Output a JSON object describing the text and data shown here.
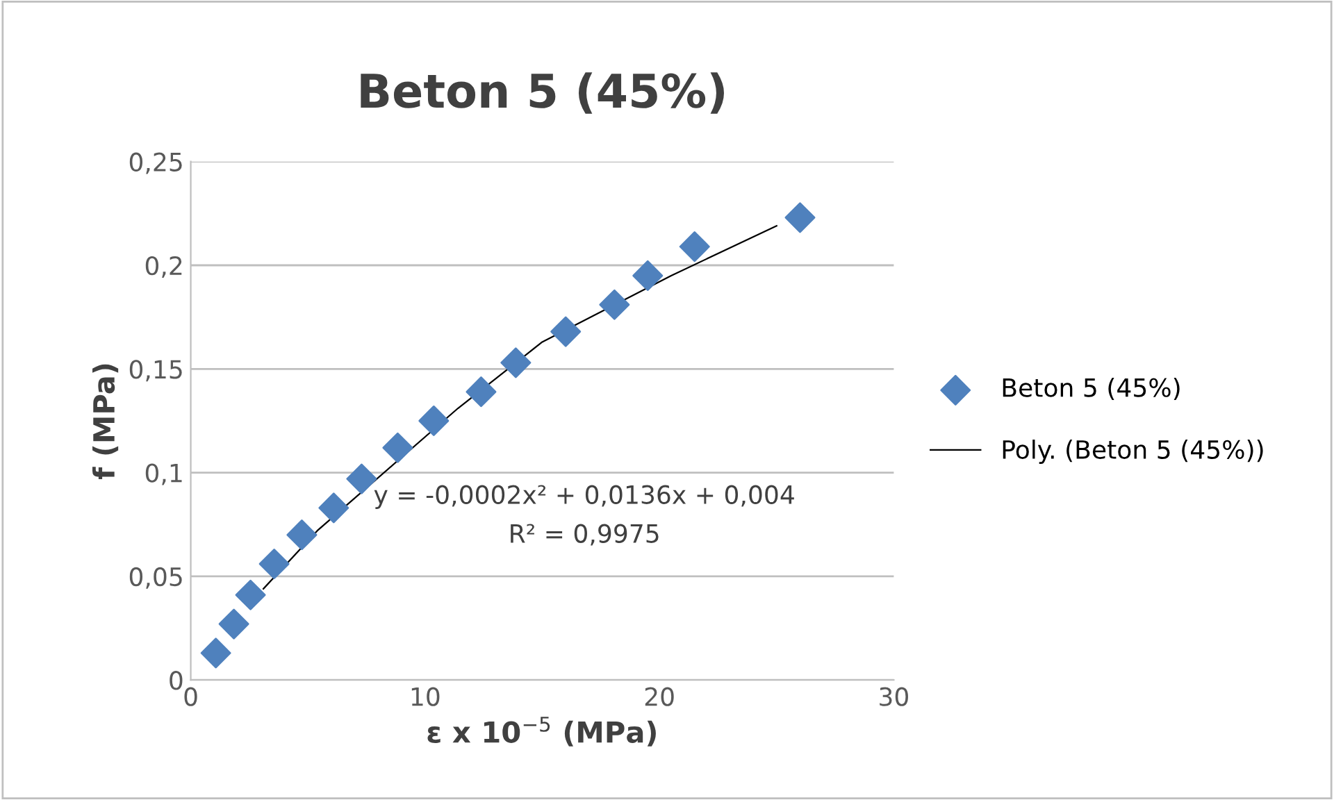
{
  "chart_data": {
    "type": "scatter",
    "title": "Beton 5 (45%)",
    "xlabel": "ε x 10$^{−5}$ (MPa)",
    "ylabel": "f (MPa)",
    "xlim": [
      0,
      30
    ],
    "xticks": [
      0,
      10,
      20,
      30
    ],
    "ylim": [
      0,
      0.25
    ],
    "yticks": [
      {
        "value": 0,
        "label": "0"
      },
      {
        "value": 0.05,
        "label": "0,05"
      },
      {
        "value": 0.1,
        "label": "0,1"
      },
      {
        "value": 0.15,
        "label": "0,15"
      },
      {
        "value": 0.2,
        "label": "0,2"
      },
      {
        "value": 0.25,
        "label": "0,25"
      }
    ],
    "grid": "y",
    "legend": "right",
    "series": [
      {
        "name": "Beton 5 (45%)",
        "marker": "diamond",
        "color": "#4f81bd",
        "x": [
          1.07,
          1.84,
          2.55,
          3.56,
          4.74,
          6.1,
          7.29,
          8.83,
          10.37,
          12.39,
          13.87,
          16.0,
          18.08,
          19.5,
          21.5,
          26.0
        ],
        "values": [
          0.013,
          0.027,
          0.041,
          0.056,
          0.07,
          0.083,
          0.097,
          0.112,
          0.125,
          0.139,
          0.153,
          0.168,
          0.181,
          0.195,
          0.209,
          0.223
        ]
      },
      {
        "name": "Poly. (Beton 5 (45%))",
        "type": "line",
        "marker": "none",
        "color": "#000000",
        "x": [
          3.1,
          5.4,
          11.4,
          15,
          20.5,
          25
        ],
        "values": [
          0.044,
          0.072,
          0.131,
          0.163,
          0.195,
          0.219
        ]
      }
    ],
    "annotations": [
      "y = -0,0002x² + 0,0136x + 0,004",
      "R² = 0,9975"
    ]
  }
}
